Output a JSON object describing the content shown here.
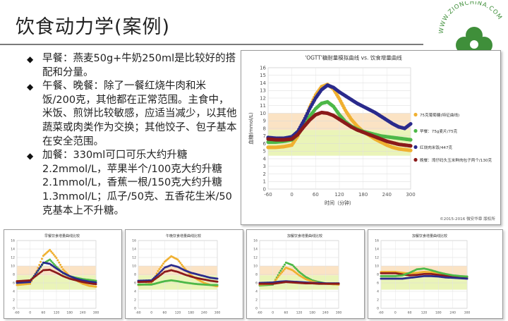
{
  "slide": {
    "title": "饮食动力学(案例)",
    "bullets": [
      "早餐：燕麦50g+牛奶250ml是比较好的搭配和分量。",
      "午餐、晚餐：除了一餐红烧牛肉和米饭/200克，其他都在正常范围。主食中，米饭、煎饼比较敏感，应适当减少，以其他蔬菜或肉类作为交换；其他饺子、包子基本在安全范围。",
      "加餐：330ml可口可乐大约升糖2.2mmol/L，苹果半个/100克大约升糖2.1mmol/L，香蕉一根/150克大约升糖1.3mmol/L；瓜子/50克、五香花生米/50克基本上不升糖。"
    ],
    "logo_text": "WWW.ZIONCHINA.COM"
  },
  "chart_data": [
    {
      "type": "line",
      "title": "'OGTT'糖耐量模拟曲线 vs. 饮食增量曲线",
      "xlabel": "时间（分钟）",
      "ylabel": "血糖(mmol/L)",
      "xlim": [
        -60,
        300
      ],
      "ylim": [
        0,
        16
      ],
      "xticks": [
        -60,
        0,
        60,
        120,
        180,
        240,
        300
      ],
      "yticks": [
        0,
        1,
        2,
        3,
        4,
        5,
        6,
        7,
        8,
        9,
        10,
        11,
        12,
        13,
        14,
        15,
        16
      ],
      "bands": [
        {
          "from": 4.4,
          "to": 7.8,
          "color": "#eaf4b8"
        },
        {
          "from": 7.8,
          "to": 10,
          "color": "#fbe3c4"
        }
      ],
      "legend_position": "right",
      "footer": "©2015-2016 微安华章 版权所",
      "series": [
        {
          "name": "75克葡萄糖(特征曲线)",
          "color": "#f0b030",
          "x": [
            -60,
            -40,
            -20,
            0,
            15,
            30,
            45,
            60,
            75,
            90,
            105,
            120,
            135,
            150,
            165,
            180,
            195,
            210,
            225,
            240,
            255,
            270,
            285,
            300
          ],
          "y": [
            5.5,
            5.5,
            5.6,
            5.8,
            7,
            8.8,
            10.8,
            12.4,
            13.5,
            13.8,
            13.2,
            11.9,
            10.4,
            9.2,
            8.3,
            7.6,
            7.1,
            6.6,
            6.2,
            5.8,
            5.5,
            5.3,
            5.2,
            5.1
          ]
        },
        {
          "name": "早餐：75g麦片/75克",
          "color": "#4db848",
          "x": [
            -60,
            -40,
            -20,
            0,
            15,
            30,
            45,
            60,
            75,
            90,
            105,
            120,
            135,
            150,
            165,
            180,
            195,
            210,
            225,
            240,
            255,
            270,
            285,
            300
          ],
          "y": [
            6.2,
            6.2,
            6.3,
            6.5,
            7.2,
            8.4,
            9.6,
            10.6,
            11.3,
            11.5,
            10.9,
            9.8,
            8.9,
            8.3,
            7.9,
            7.6,
            7.4,
            7.2,
            7,
            6.9,
            6.8,
            6.7,
            6.6,
            6.5
          ]
        },
        {
          "name": "红烧肉米饭/447克",
          "color": "#2a2a8c",
          "x": [
            -60,
            -40,
            -20,
            0,
            15,
            30,
            45,
            60,
            75,
            90,
            105,
            120,
            135,
            150,
            165,
            180,
            195,
            210,
            225,
            240,
            255,
            270,
            285,
            300
          ],
          "y": [
            6.8,
            6.7,
            6.7,
            6.9,
            7.6,
            9,
            10.6,
            12,
            13.1,
            13.7,
            13.4,
            12.8,
            12.3,
            11.8,
            11.3,
            10.9,
            10.5,
            10.1,
            9.6,
            9.1,
            8.6,
            8.2,
            8,
            8.6
          ]
        },
        {
          "name": "晚餐：湾仔码头玉米鲜肉包子两个/130克",
          "color": "#8b1a1a",
          "x": [
            -60,
            -40,
            -20,
            0,
            15,
            30,
            45,
            60,
            75,
            90,
            105,
            120,
            135,
            150,
            165,
            180,
            195,
            210,
            225,
            240,
            255,
            270,
            285,
            300
          ],
          "y": [
            6.6,
            6.5,
            6.5,
            6.6,
            7.2,
            8.2,
            9.1,
            9.8,
            10.1,
            10,
            9.7,
            9.2,
            8.7,
            8.2,
            7.8,
            7.5,
            7.2,
            6.9,
            6.6,
            6.3,
            6.1,
            5.9,
            5.8,
            5.7
          ]
        }
      ]
    },
    {
      "type": "line",
      "title": "早餐饮食增量曲线比较",
      "xlim": [
        -60,
        300
      ],
      "ylim": [
        0,
        16
      ],
      "xticks": [
        -60,
        0,
        60,
        120,
        180,
        240,
        300
      ],
      "yticks": [
        0,
        2,
        4,
        6,
        8,
        10,
        12,
        14,
        16
      ],
      "bands": [
        {
          "from": 4.4,
          "to": 7.8,
          "color": "#eaf4b8"
        },
        {
          "from": 7.8,
          "to": 10,
          "color": "#fbe3c4"
        }
      ],
      "series": [
        {
          "color": "#f0b030",
          "x": [
            -60,
            0,
            30,
            60,
            90,
            120,
            150,
            180,
            210,
            240,
            270,
            300
          ],
          "y": [
            5.5,
            5.8,
            8.8,
            12.4,
            13.8,
            11.9,
            9.2,
            7.6,
            6.6,
            5.8,
            5.3,
            5.1
          ]
        },
        {
          "color": "#4db848",
          "x": [
            -60,
            0,
            30,
            60,
            90,
            120,
            150,
            180,
            210,
            240,
            270,
            300
          ],
          "y": [
            6.2,
            6.5,
            8.4,
            10.6,
            11.5,
            9.8,
            8.3,
            7.6,
            7.2,
            6.9,
            6.7,
            6.5
          ]
        },
        {
          "color": "#2a2a8c",
          "x": [
            -60,
            0,
            30,
            60,
            90,
            120,
            150,
            180,
            210,
            240,
            270,
            300
          ],
          "y": [
            6.0,
            6.2,
            8.5,
            10.8,
            10.5,
            9.4,
            8.4,
            7.6,
            7.0,
            6.6,
            6.3,
            6.1
          ]
        },
        {
          "color": "#8b1a1a",
          "x": [
            -60,
            0,
            30,
            60,
            90,
            120,
            150,
            180,
            210,
            240,
            270,
            300
          ],
          "y": [
            6.4,
            6.6,
            7.8,
            9.0,
            9.1,
            8.4,
            7.6,
            7.0,
            6.6,
            6.2,
            5.9,
            5.7
          ]
        }
      ]
    },
    {
      "type": "line",
      "title": "午晚饮食增量曲线比较",
      "xlim": [
        -60,
        300
      ],
      "ylim": [
        0,
        16
      ],
      "xticks": [
        -60,
        0,
        60,
        120,
        180,
        240,
        300
      ],
      "yticks": [
        0,
        2,
        4,
        6,
        8,
        10,
        12,
        14,
        16
      ],
      "bands": [
        {
          "from": 4.4,
          "to": 7.8,
          "color": "#eaf4b8"
        },
        {
          "from": 7.8,
          "to": 10,
          "color": "#fbe3c4"
        }
      ],
      "series": [
        {
          "color": "#f0b030",
          "x": [
            -60,
            0,
            30,
            60,
            90,
            120,
            150,
            180,
            210,
            240,
            270,
            300
          ],
          "y": [
            5.5,
            5.8,
            8.8,
            11.0,
            12.3,
            11.5,
            9.5,
            7.8,
            6.8,
            6.0,
            5.5,
            5.2
          ]
        },
        {
          "color": "#2a2a8c",
          "x": [
            -60,
            0,
            30,
            60,
            90,
            120,
            150,
            180,
            210,
            240,
            270,
            300
          ],
          "y": [
            6.5,
            6.6,
            8.0,
            9.6,
            10.2,
            9.8,
            9.0,
            8.4,
            8.0,
            7.6,
            7.2,
            7.0
          ]
        },
        {
          "color": "#8b1a1a",
          "x": [
            -60,
            0,
            30,
            60,
            90,
            120,
            150,
            180,
            210,
            240,
            270,
            300
          ],
          "y": [
            6.2,
            6.3,
            7.4,
            8.6,
            9.0,
            8.6,
            8.0,
            7.5,
            7.1,
            6.8,
            6.5,
            6.3
          ]
        },
        {
          "color": "#4db848",
          "x": [
            -60,
            0,
            30,
            60,
            90,
            120,
            150,
            180,
            210,
            240,
            270,
            300
          ],
          "y": [
            5.6,
            5.6,
            6.0,
            6.4,
            6.6,
            6.4,
            6.1,
            5.9,
            5.7,
            5.6,
            5.5,
            5.5
          ]
        }
      ]
    },
    {
      "type": "line",
      "title": "加餐饮食增量曲线比较",
      "xlim": [
        -60,
        300
      ],
      "ylim": [
        0,
        16
      ],
      "xticks": [
        -60,
        0,
        60,
        120,
        180,
        240,
        300
      ],
      "yticks": [
        0,
        2,
        4,
        6,
        8,
        10,
        12,
        14,
        16
      ],
      "bands": [
        {
          "from": 4.4,
          "to": 7.8,
          "color": "#eaf4b8"
        },
        {
          "from": 7.8,
          "to": 10,
          "color": "#fbe3c4"
        }
      ],
      "series": [
        {
          "color": "#4db848",
          "x": [
            -60,
            0,
            30,
            60,
            90,
            120,
            150,
            180,
            210,
            240,
            270,
            300
          ],
          "y": [
            5.4,
            5.6,
            8.4,
            10.8,
            10.2,
            8.6,
            7.4,
            6.6,
            6.2,
            5.9,
            5.7,
            5.6
          ]
        },
        {
          "color": "#f0b030",
          "x": [
            -60,
            0,
            30,
            60,
            90,
            120,
            150,
            180,
            210,
            240,
            270,
            300
          ],
          "y": [
            5.6,
            5.8,
            7.8,
            9.6,
            9.0,
            7.8,
            6.9,
            6.3,
            6.0,
            5.8,
            5.7,
            5.6
          ]
        },
        {
          "color": "#2a2a8c",
          "x": [
            -60,
            0,
            30,
            60,
            90,
            120,
            150,
            180,
            210,
            240,
            270,
            300
          ],
          "y": [
            6.0,
            6.1,
            6.3,
            6.4,
            6.3,
            6.2,
            6.1,
            6.0,
            6.0,
            5.9,
            5.9,
            5.9
          ]
        },
        {
          "color": "#8b1a1a",
          "x": [
            -60,
            0,
            30,
            60,
            90,
            120,
            150,
            180,
            210,
            240,
            270,
            300
          ],
          "y": [
            5.8,
            5.8,
            6.0,
            6.2,
            6.1,
            6.0,
            5.9,
            5.9,
            5.8,
            5.8,
            5.8,
            5.8
          ]
        }
      ]
    },
    {
      "type": "line",
      "title": "加餐饮食增量曲线比较",
      "xlim": [
        -60,
        300
      ],
      "ylim": [
        0,
        16
      ],
      "xticks": [
        -60,
        0,
        60,
        120,
        180,
        240,
        300
      ],
      "yticks": [
        0,
        2,
        4,
        6,
        8,
        10,
        12,
        14,
        16
      ],
      "bands": [
        {
          "from": 4.4,
          "to": 7.8,
          "color": "#eaf4b8"
        },
        {
          "from": 7.8,
          "to": 10,
          "color": "#fbe3c4"
        }
      ],
      "series": [
        {
          "color": "#f0b030",
          "x": [
            -60,
            0,
            30,
            60,
            90,
            120,
            150,
            180,
            210,
            240,
            270,
            300
          ],
          "y": [
            8.6,
            8.6,
            8.4,
            8.2,
            8.4,
            8.6,
            8.5,
            8.2,
            7.9,
            7.7,
            7.6,
            7.5
          ]
        },
        {
          "color": "#8b1a1a",
          "x": [
            -60,
            0,
            30,
            60,
            90,
            120,
            150,
            180,
            210,
            240,
            270,
            300
          ],
          "y": [
            8.3,
            8.3,
            8.0,
            7.8,
            7.9,
            8.1,
            8.1,
            7.9,
            7.7,
            7.6,
            7.5,
            7.4
          ]
        },
        {
          "color": "#4db848",
          "x": [
            -60,
            0,
            30,
            60,
            90,
            120,
            150,
            180,
            210,
            240,
            270,
            300
          ],
          "y": [
            7.6,
            7.6,
            7.8,
            8.4,
            9.2,
            9.4,
            9.0,
            8.5,
            8.1,
            7.8,
            7.6,
            7.5
          ]
        },
        {
          "color": "#2a2a8c",
          "x": [
            -60,
            0,
            30,
            60,
            90,
            120,
            150,
            180,
            210,
            240,
            270,
            300
          ],
          "y": [
            7.0,
            7.0,
            7.0,
            7.2,
            7.4,
            7.6,
            7.6,
            7.5,
            7.3,
            7.2,
            7.1,
            7.0
          ]
        }
      ]
    }
  ]
}
